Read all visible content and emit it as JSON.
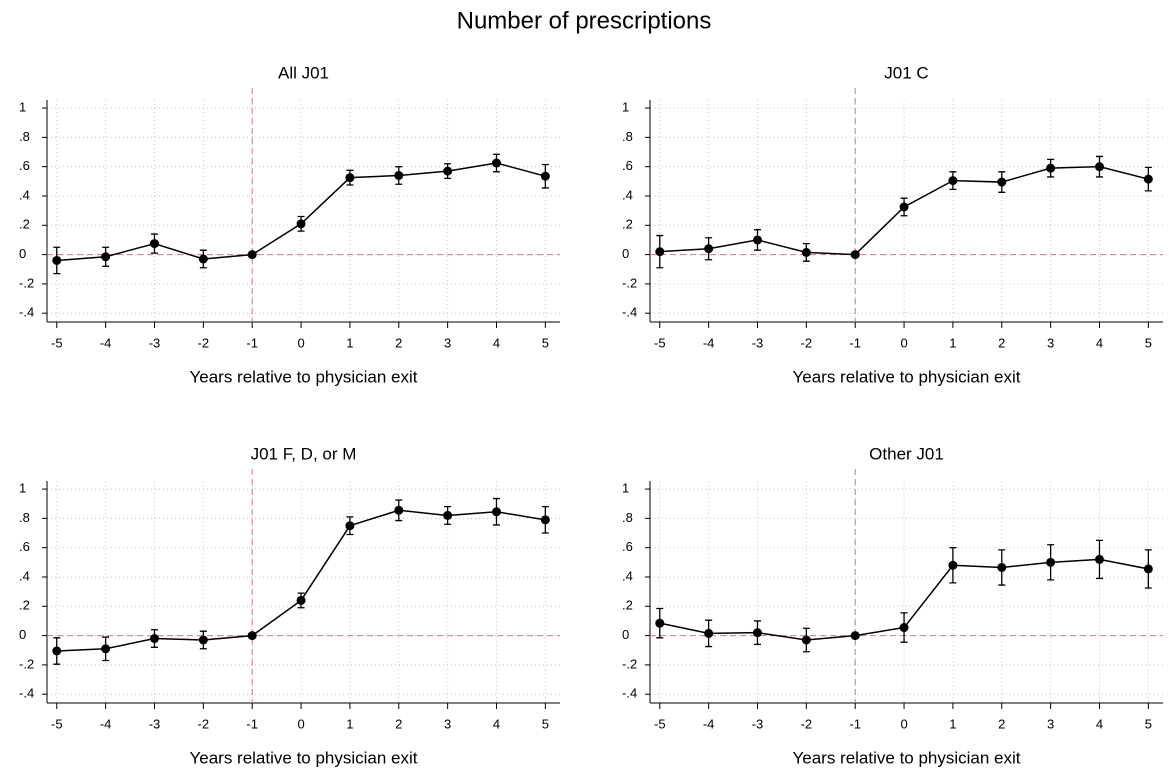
{
  "title": "Number of prescriptions",
  "chart_data": [
    {
      "type": "line",
      "title": "All J01",
      "xlabel": "Years relative to physician exit",
      "x": [
        -5,
        -4,
        -3,
        -2,
        -1,
        0,
        1,
        2,
        3,
        4,
        5
      ],
      "series": [
        {
          "color": "#000000",
          "values": [
            -0.04,
            -0.015,
            0.075,
            -0.03,
            0,
            0.21,
            0.525,
            0.54,
            0.57,
            0.625,
            0.535
          ],
          "errors": [
            0.09,
            0.065,
            0.065,
            0.06,
            0,
            0.05,
            0.05,
            0.06,
            0.05,
            0.06,
            0.08
          ]
        }
      ],
      "xlim": [
        -5.2,
        5.3
      ],
      "xticks": [
        -5,
        -4,
        -3,
        -2,
        -1,
        0,
        1,
        2,
        3,
        4,
        5
      ],
      "ylim": [
        -0.46,
        1.055
      ],
      "yticks": [
        {
          "value": -0.4,
          "label": "-.4"
        },
        {
          "value": -0.2,
          "label": "-.2"
        },
        0,
        {
          "value": 0.2,
          "label": ".2"
        },
        {
          "value": 0.4,
          "label": ".4"
        },
        {
          "value": 0.6,
          "label": ".6"
        },
        {
          "value": 0.8,
          "label": ".8"
        },
        1
      ],
      "grid": true,
      "xline": -1,
      "yline": 0,
      "reference_color": "#c8799c"
    },
    {
      "type": "line",
      "title": "J01 C",
      "xlabel": "Years relative to physician exit",
      "x": [
        -5,
        -4,
        -3,
        -2,
        -1,
        0,
        1,
        2,
        3,
        4,
        5
      ],
      "series": [
        {
          "color": "#000000",
          "values": [
            0.02,
            0.04,
            0.1,
            0.015,
            0,
            0.325,
            0.505,
            0.495,
            0.59,
            0.6,
            0.515
          ],
          "errors": [
            0.11,
            0.075,
            0.07,
            0.06,
            0,
            0.06,
            0.06,
            0.07,
            0.06,
            0.07,
            0.08
          ]
        }
      ],
      "xlim": [
        -5.2,
        5.3
      ],
      "xticks": [
        -5,
        -4,
        -3,
        -2,
        -1,
        0,
        1,
        2,
        3,
        4,
        5
      ],
      "ylim": [
        -0.46,
        1.055
      ],
      "yticks": [
        {
          "value": -0.4,
          "label": "-.4"
        },
        {
          "value": -0.2,
          "label": "-.2"
        },
        0,
        {
          "value": 0.2,
          "label": ".2"
        },
        {
          "value": 0.4,
          "label": ".4"
        },
        {
          "value": 0.6,
          "label": ".6"
        },
        {
          "value": 0.8,
          "label": ".8"
        },
        1
      ],
      "grid": true,
      "xline": -1,
      "yline": 0,
      "reference_color": "#c8799c"
    },
    {
      "type": "line",
      "title": "J01 F, D, or M",
      "xlabel": "Years relative to physician exit",
      "x": [
        -5,
        -4,
        -3,
        -2,
        -1,
        0,
        1,
        2,
        3,
        4,
        5
      ],
      "series": [
        {
          "color": "#000000",
          "values": [
            -0.105,
            -0.09,
            -0.02,
            -0.03,
            0,
            0.24,
            0.75,
            0.855,
            0.82,
            0.845,
            0.79
          ],
          "errors": [
            0.09,
            0.08,
            0.06,
            0.06,
            0,
            0.05,
            0.06,
            0.07,
            0.06,
            0.09,
            0.09
          ]
        }
      ],
      "xlim": [
        -5.2,
        5.3
      ],
      "xticks": [
        -5,
        -4,
        -3,
        -2,
        -1,
        0,
        1,
        2,
        3,
        4,
        5
      ],
      "ylim": [
        -0.46,
        1.055
      ],
      "yticks": [
        {
          "value": -0.4,
          "label": "-.4"
        },
        {
          "value": -0.2,
          "label": "-.2"
        },
        0,
        {
          "value": 0.2,
          "label": ".2"
        },
        {
          "value": 0.4,
          "label": ".4"
        },
        {
          "value": 0.6,
          "label": ".6"
        },
        {
          "value": 0.8,
          "label": ".8"
        },
        1
      ],
      "grid": true,
      "xline": -1,
      "yline": 0,
      "reference_color": "#c8799c"
    },
    {
      "type": "line",
      "title": "Other J01",
      "xlabel": "Years relative to physician exit",
      "x": [
        -5,
        -4,
        -3,
        -2,
        -1,
        0,
        1,
        2,
        3,
        4,
        5
      ],
      "series": [
        {
          "color": "#000000",
          "values": [
            0.085,
            0.015,
            0.02,
            -0.03,
            0,
            0.055,
            0.48,
            0.465,
            0.5,
            0.52,
            0.455
          ],
          "errors": [
            0.1,
            0.09,
            0.08,
            0.08,
            0,
            0.1,
            0.12,
            0.12,
            0.12,
            0.13,
            0.13
          ]
        }
      ],
      "xlim": [
        -5.2,
        5.3
      ],
      "xticks": [
        -5,
        -4,
        -3,
        -2,
        -1,
        0,
        1,
        2,
        3,
        4,
        5
      ],
      "ylim": [
        -0.46,
        1.055
      ],
      "yticks": [
        {
          "value": -0.4,
          "label": "-.4"
        },
        {
          "value": -0.2,
          "label": "-.2"
        },
        0,
        {
          "value": 0.2,
          "label": ".2"
        },
        {
          "value": 0.4,
          "label": ".4"
        },
        {
          "value": 0.6,
          "label": ".6"
        },
        {
          "value": 0.8,
          "label": ".8"
        },
        1
      ],
      "grid": true,
      "xline": -1,
      "yline": 0,
      "reference_color": "#c8799c"
    }
  ]
}
